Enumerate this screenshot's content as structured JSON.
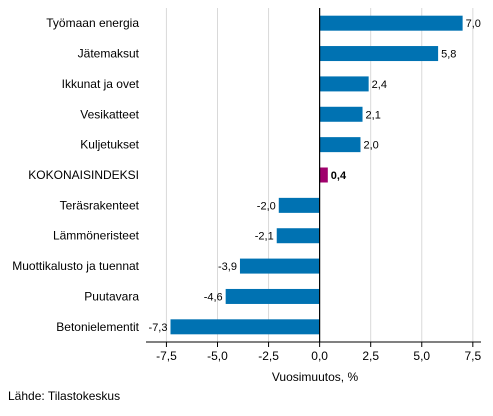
{
  "chart_data": {
    "type": "bar",
    "orientation": "horizontal",
    "categories": [
      "Työmaan energia",
      "Jätemaksut",
      "Ikkunat ja ovet",
      "Vesikatteet",
      "Kuljetukset",
      "KOKONAISINDEKSI",
      "Teräsrakenteet",
      "Lämmöneristeet",
      "Muottikalusto ja tuennat",
      "Puutavara",
      "Betonielementit"
    ],
    "values": [
      7.0,
      5.8,
      2.4,
      2.1,
      2.0,
      0.4,
      -2.0,
      -2.1,
      -3.9,
      -4.6,
      -7.3
    ],
    "value_labels": [
      "7,0",
      "5,8",
      "2,4",
      "2,1",
      "2,0",
      "0,4",
      "-2,0",
      "-2,1",
      "-3,9",
      "-4,6",
      "-7,3"
    ],
    "highlight_category": "KOKONAISINDEKSI",
    "xlabel": "Vuosimuutos, %",
    "xlim": [
      -8.5,
      7.9
    ],
    "xticks": [
      -7.5,
      -5.0,
      -2.5,
      0.0,
      2.5,
      5.0,
      7.5
    ],
    "xtick_labels": [
      "-7,5",
      "-5,0",
      "-2,5",
      "0,0",
      "2,5",
      "5,0",
      "7,5"
    ],
    "grid": "vertical",
    "colors": {
      "bar": "#0072b2",
      "highlight": "#a0006c",
      "grid": "#d9d9d9",
      "zero_line": "#000000"
    }
  },
  "source": "Lähde: Tilastokeskus"
}
